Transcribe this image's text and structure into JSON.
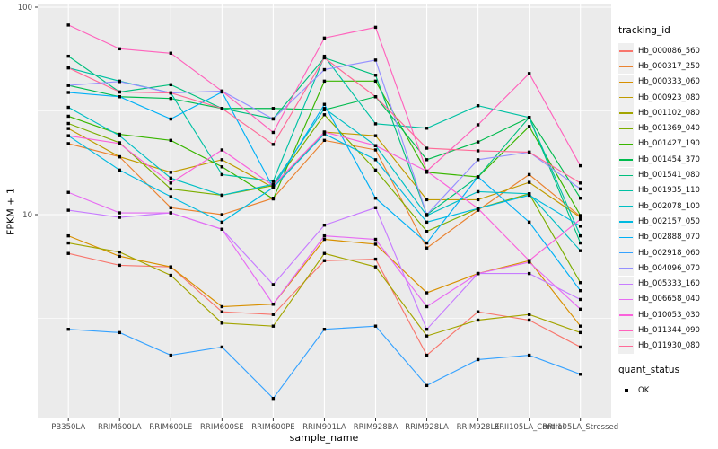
{
  "chart_data": {
    "type": "line",
    "title": "",
    "xlabel": "sample_name",
    "ylabel": "FPKM + 1",
    "y_scale": "log10",
    "ylim": [
      1,
      103
    ],
    "yticks": [
      {
        "label": "100",
        "value": 100
      },
      {
        "label": "10",
        "value": 10
      }
    ],
    "y_minor_breaks": [
      31.6,
      3.16
    ],
    "grid": "on",
    "panel_bg": "#EBEBEB",
    "grid_color": "#FFFFFF",
    "point_shape": "black-square",
    "legend_position": "right",
    "legend_title": "tracking_id",
    "categories": [
      "PB350LA",
      "RRIM600LA",
      "RRIM600LE",
      "RRIM600SE",
      "RRIM600PE",
      "RRIM901LA",
      "RRIM928BA",
      "RRIM928LA",
      "RRIM928LE",
      "RRII105LA_Control",
      "RRII105LA_Stressed"
    ],
    "series": [
      {
        "name": "Hb_000086_560",
        "color": "#F8766D",
        "values": [
          6.5,
          5.7,
          5.6,
          3.4,
          3.3,
          6.0,
          6.1,
          2.1,
          3.4,
          3.1,
          2.3
        ]
      },
      {
        "name": "Hb_000317_250",
        "color": "#EA8331",
        "values": [
          22,
          19,
          10.8,
          10,
          12,
          22.8,
          20.5,
          6.9,
          10.5,
          15.6,
          9.8
        ]
      },
      {
        "name": "Hb_000333_060",
        "color": "#D89000",
        "values": [
          7.9,
          6.3,
          5.6,
          3.6,
          3.7,
          7.6,
          7.2,
          4.2,
          5.2,
          6.0,
          2.9
        ]
      },
      {
        "name": "Hb_000923_080",
        "color": "#C09B00",
        "values": [
          26,
          19,
          16,
          18.4,
          13.5,
          25,
          24,
          11.8,
          11.8,
          14.3,
          9.7
        ]
      },
      {
        "name": "Hb_001102_080",
        "color": "#A3A500",
        "values": [
          7.3,
          6.6,
          5.1,
          3.0,
          2.9,
          6.5,
          5.6,
          2.6,
          3.1,
          3.3,
          2.7
        ]
      },
      {
        "name": "Hb_001369_040",
        "color": "#7CAE00",
        "values": [
          27.5,
          22.2,
          13.3,
          12.4,
          13.8,
          30.3,
          16.4,
          8.3,
          10.7,
          12.6,
          4.7
        ]
      },
      {
        "name": "Hb_001427_190",
        "color": "#39B600",
        "values": [
          29.8,
          24.4,
          22.8,
          17,
          11.9,
          44,
          44,
          16,
          15.2,
          26.6,
          9.9
        ]
      },
      {
        "name": "Hb_001454_370",
        "color": "#00BB4E",
        "values": [
          42,
          37,
          36.3,
          32.5,
          32.5,
          32,
          37,
          18.4,
          22.4,
          29.4,
          12
        ]
      },
      {
        "name": "Hb_001541_080",
        "color": "#00BF7D",
        "values": [
          58,
          39,
          42.3,
          32.5,
          29,
          57,
          47,
          10,
          15.2,
          29.4,
          7.3
        ]
      },
      {
        "name": "Hb_001935_110",
        "color": "#00C1A3",
        "values": [
          51,
          44,
          38.6,
          15.6,
          14.5,
          58,
          27.4,
          26.1,
          33.5,
          29.4,
          7.9
        ]
      },
      {
        "name": "Hb_002078_100",
        "color": "#00BFC4",
        "values": [
          32.9,
          24,
          15,
          12.4,
          14,
          32.5,
          21.5,
          9.9,
          12.9,
          12.6,
          6.7
        ]
      },
      {
        "name": "Hb_002157_050",
        "color": "#00BAE0",
        "values": [
          24,
          16.4,
          12.2,
          9.2,
          13.5,
          24.5,
          18.4,
          9.2,
          10.7,
          12.4,
          8.8
        ]
      },
      {
        "name": "Hb_002888_070",
        "color": "#00B0F6",
        "values": [
          38.8,
          37,
          28.9,
          39,
          13.5,
          34,
          12,
          7.3,
          15.2,
          9.2,
          4.3
        ]
      },
      {
        "name": "Hb_002918_060",
        "color": "#35A2FF",
        "values": [
          2.8,
          2.7,
          2.1,
          2.3,
          1.3,
          2.8,
          2.9,
          1.5,
          2.0,
          2.1,
          1.7
        ]
      },
      {
        "name": "Hb_004096_070",
        "color": "#9590FF",
        "values": [
          42,
          43.8,
          38.6,
          39.4,
          28.9,
          50,
          55.6,
          10,
          18.4,
          20,
          13.3
        ]
      },
      {
        "name": "Hb_005333_160",
        "color": "#C77CFF",
        "values": [
          10.5,
          9.7,
          10.2,
          8.5,
          4.6,
          8.9,
          10.8,
          2.8,
          5.2,
          5.2,
          3.9
        ]
      },
      {
        "name": "Hb_006658_040",
        "color": "#E76BF3",
        "values": [
          12.8,
          10.2,
          10.2,
          8.5,
          3.7,
          7.9,
          7.6,
          3.6,
          5.2,
          5.9,
          3.5
        ]
      },
      {
        "name": "Hb_010053_030",
        "color": "#FA62DB",
        "values": [
          24,
          22,
          14.2,
          20.5,
          13.8,
          25,
          21.5,
          16.2,
          10.7,
          6.0,
          9.5
        ]
      },
      {
        "name": "Hb_011344_090",
        "color": "#FF62BC",
        "values": [
          82,
          63,
          60,
          39.4,
          24.9,
          71,
          80,
          16.2,
          27.1,
          47.9,
          17.2
        ]
      },
      {
        "name": "Hb_011930_080",
        "color": "#FF6A98",
        "values": [
          51,
          39,
          38.6,
          32.5,
          21.8,
          57,
          37,
          20.9,
          20.3,
          20,
          14.2
        ]
      }
    ],
    "quant_legend": {
      "title": "quant_status",
      "items": [
        {
          "label": "OK"
        }
      ]
    }
  }
}
